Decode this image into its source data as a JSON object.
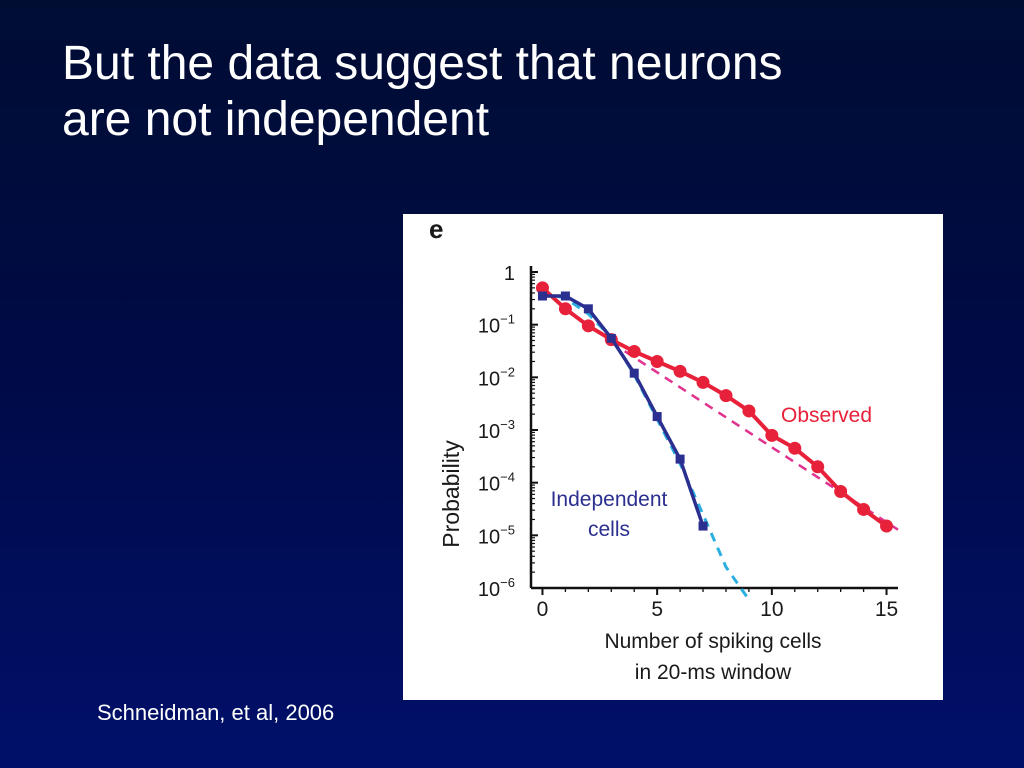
{
  "slide": {
    "title_line1": "But the data suggest that neurons",
    "title_line2": "are not independent",
    "citation": "Schneidman, et al, 2006"
  },
  "colors": {
    "background": "#000a45",
    "observed": "#e8213a",
    "independent": "#2b2f8f",
    "fit_cyan": "#2ab0e0",
    "fit_magenta": "#e0338f"
  },
  "chart_data": {
    "type": "line",
    "panel_label": "e",
    "xlabel_line1": "Number of spiking cells",
    "xlabel_line2": "in 20-ms window",
    "ylabel": "Probability",
    "xlim": [
      -0.5,
      15.5
    ],
    "ylim_log10": [
      -6,
      0
    ],
    "yscale": "log",
    "x_ticks": [
      "0",
      "5",
      "10",
      "15"
    ],
    "x_tick_values": [
      0,
      5,
      10,
      15
    ],
    "y_tick_base": "10",
    "y_ticks": [
      {
        "label": "1",
        "exp": ""
      },
      {
        "label": "10",
        "exp": "−1"
      },
      {
        "label": "10",
        "exp": "−2"
      },
      {
        "label": "10",
        "exp": "−3"
      },
      {
        "label": "10",
        "exp": "−4"
      },
      {
        "label": "10",
        "exp": "−5"
      },
      {
        "label": "10",
        "exp": "−6"
      }
    ],
    "y_tick_values": [
      1,
      0.1,
      0.01,
      0.001,
      0.0001,
      1e-05,
      1e-06
    ],
    "series": [
      {
        "name": "Observed",
        "x": [
          0,
          1,
          2,
          3,
          4,
          5,
          6,
          7,
          8,
          9,
          10,
          11,
          12,
          13,
          14,
          15
        ],
        "y": [
          0.5,
          0.2,
          0.095,
          0.052,
          0.031,
          0.02,
          0.013,
          0.008,
          0.0045,
          0.0023,
          0.00079,
          0.00045,
          0.0002,
          6.8e-05,
          3.1e-05,
          1.5e-05
        ],
        "style": "line-circle"
      },
      {
        "name": "Independent cells",
        "label_line1": "Independent",
        "label_line2": "cells",
        "x": [
          0,
          1,
          2,
          3,
          4,
          5,
          6,
          7
        ],
        "y": [
          0.35,
          0.35,
          0.2,
          0.055,
          0.012,
          0.0018,
          0.00028,
          1.5e-05
        ],
        "style": "line-square"
      },
      {
        "x": [
          0,
          1,
          2,
          3,
          4,
          5,
          6,
          7,
          8,
          9
        ],
        "y": [
          0.4,
          0.32,
          0.16,
          0.057,
          0.0112,
          0.0016,
          0.00023,
          2.5e-05,
          2.5e-06,
          6e-07
        ],
        "style": "dashed-cyan"
      },
      {
        "x": [
          3,
          15.5
        ],
        "y": [
          0.046,
          1.28e-05
        ],
        "style": "dashed-magenta"
      }
    ],
    "annotations": [
      "Observed",
      "Independent cells"
    ]
  }
}
